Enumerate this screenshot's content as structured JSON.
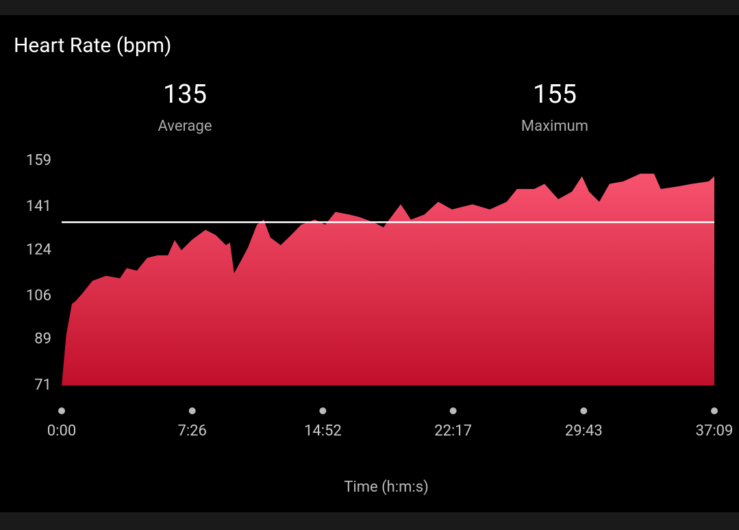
{
  "chart_data": {
    "type": "area",
    "title": "Heart Rate (bpm)",
    "stats": [
      {
        "value": 135,
        "label": "Average"
      },
      {
        "value": 155,
        "label": "Maximum"
      }
    ],
    "x_label": "Time (h:m:s)",
    "x": [
      0,
      7,
      16,
      35,
      47,
      70,
      105,
      152,
      199,
      222,
      257,
      292,
      327,
      363,
      386,
      409,
      444,
      491,
      526,
      561,
      575,
      589,
      613,
      636,
      667,
      690,
      713,
      748,
      784,
      818,
      865,
      900,
      935,
      982,
      1017,
      1064,
      1099,
      1158,
      1193,
      1239,
      1286,
      1333,
      1403,
      1462,
      1520,
      1555,
      1614,
      1649,
      1696,
      1743,
      1777,
      1801,
      1836,
      1871,
      1918,
      1976,
      2023,
      2046,
      2105,
      2152,
      2210,
      2229
    ],
    "values": [
      71,
      80,
      91,
      103,
      104,
      107,
      112,
      114,
      113,
      117,
      116,
      121,
      122,
      122,
      128,
      124,
      128,
      132,
      130,
      126,
      127,
      115,
      120,
      125,
      134,
      136,
      129,
      126,
      130,
      134,
      136,
      134,
      139,
      138,
      137,
      135,
      133,
      142,
      136,
      138,
      143,
      140,
      142,
      140,
      143,
      148,
      148,
      150,
      144,
      147,
      153,
      147,
      143,
      150,
      151,
      154,
      154,
      148,
      149,
      150,
      151,
      153
    ],
    "gradient": [
      "#f7536f",
      "#c10f2a"
    ],
    "average_line_color": "#ffffff",
    "xlim": [
      0,
      2229
    ],
    "xticks": [
      {
        "value": 0,
        "label": "0:00"
      },
      {
        "value": 446,
        "label": "7:26"
      },
      {
        "value": 892,
        "label": "14:52"
      },
      {
        "value": 1337,
        "label": "22:17"
      },
      {
        "value": 1783,
        "label": "29:43"
      },
      {
        "value": 2229,
        "label": "37:09"
      }
    ],
    "ylim": [
      71,
      159
    ],
    "yticks": [
      71,
      89,
      106,
      124,
      141,
      159
    ]
  }
}
